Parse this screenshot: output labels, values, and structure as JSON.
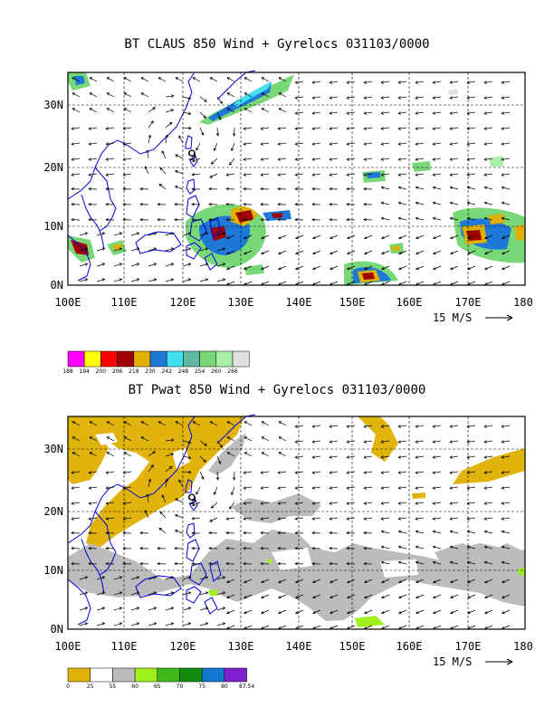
{
  "map_data": [
    {
      "title": "BT CLAUS 850 Wind + Gyrelocs 031103/0000",
      "lat_labels": [
        "30N",
        "20N",
        "10N",
        "0N"
      ],
      "lon_labels": [
        "100E",
        "110E",
        "120E",
        "130E",
        "140E",
        "150E",
        "160E",
        "170E",
        "180"
      ],
      "reference_vector": "15 M/S",
      "storm_marker": "9",
      "colorbar": {
        "labels": [
          "188",
          "194",
          "200",
          "206",
          "218",
          "230",
          "242",
          "248",
          "254",
          "260",
          "266"
        ],
        "colors": [
          "#ff00ff",
          "#ffff00",
          "#ff0000",
          "#a00000",
          "#e0b000",
          "#1e78d8",
          "#40e0f0",
          "#60b8a0",
          "#78d878",
          "#a8f0a8",
          "#e0e0e0"
        ]
      }
    },
    {
      "title": "BT Pwat 850 Wind + Gyrelocs 031103/0000",
      "lat_labels": [
        "30N",
        "20N",
        "10N",
        "0N"
      ],
      "lon_labels": [
        "100E",
        "110E",
        "120E",
        "130E",
        "140E",
        "150E",
        "160E",
        "170E",
        "180"
      ],
      "reference_vector": "15 M/S",
      "storm_marker": "9",
      "colorbar": {
        "labels": [
          "0",
          "25",
          "55",
          "60",
          "65",
          "70",
          "75",
          "80",
          "87.54"
        ],
        "colors": [
          "#e0b40c",
          "#ffffff",
          "#bcbcbc",
          "#a0f020",
          "#40b818",
          "#108c10",
          "#1078d0",
          "#8020d0"
        ]
      }
    }
  ]
}
